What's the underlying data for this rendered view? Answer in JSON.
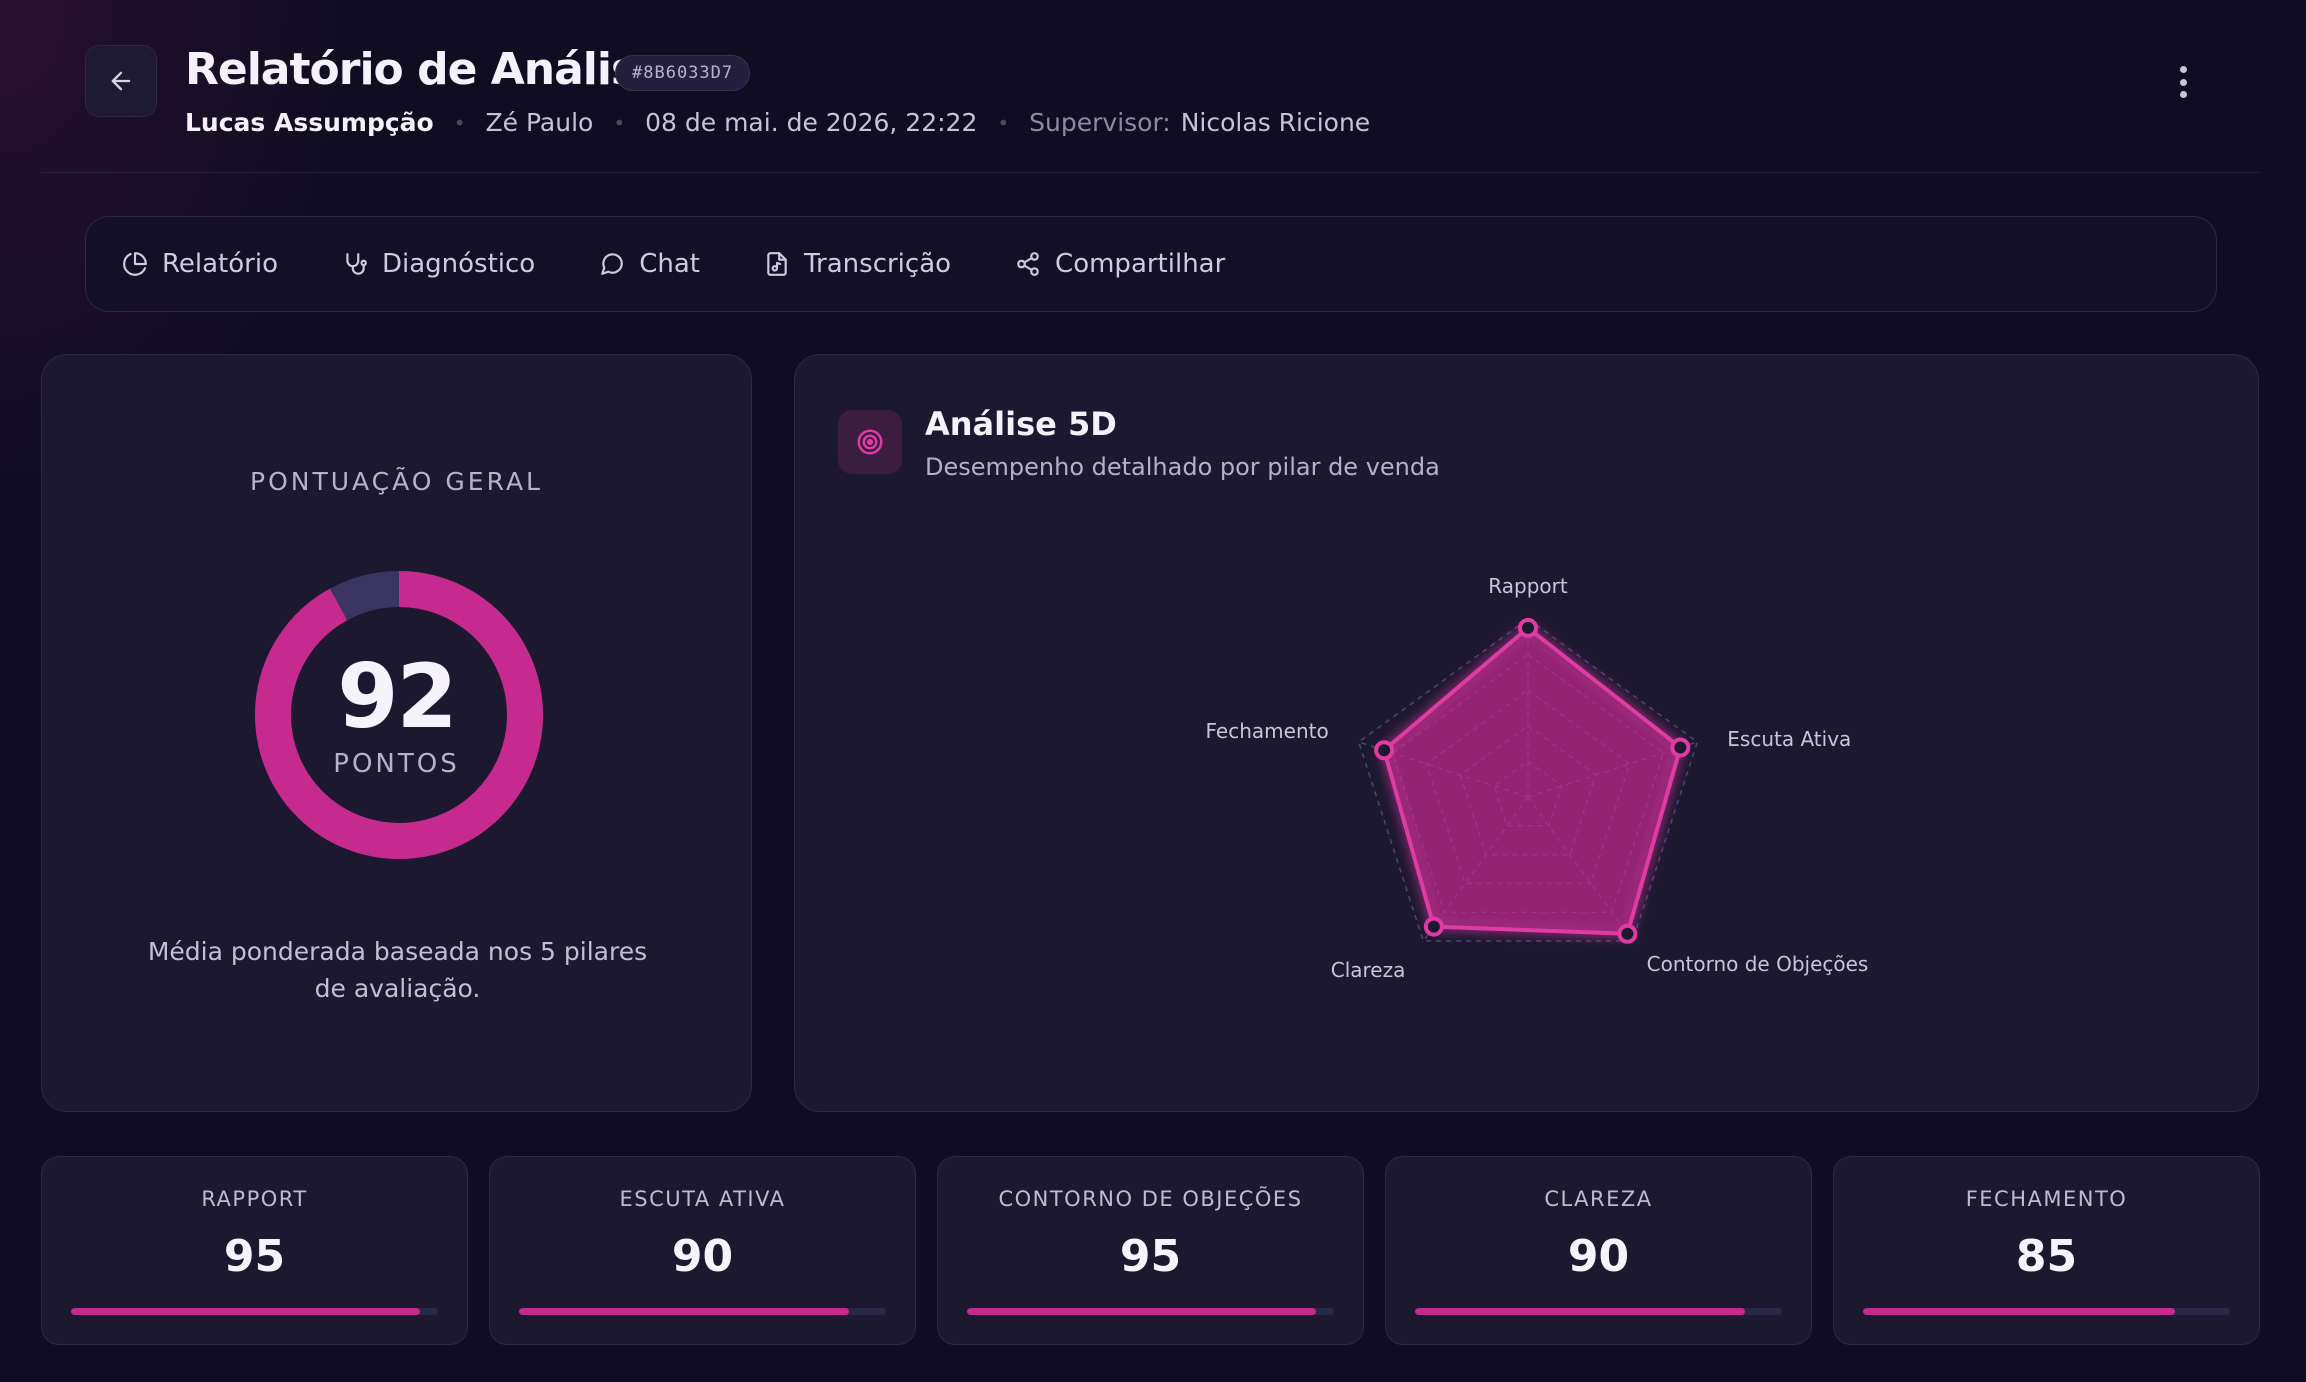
{
  "header": {
    "title": "Relatório de Análise",
    "id_badge": "#8B6033D7",
    "seller": "Lucas Assumpção",
    "client": "Zé Paulo",
    "datetime": "08 de mai. de 2026, 22:22",
    "supervisor_label": "Supervisor:",
    "supervisor": "Nicolas Ricione"
  },
  "tabs": [
    {
      "label": "Relatório",
      "icon": "pie-chart-icon"
    },
    {
      "label": "Diagnóstico",
      "icon": "stethoscope-icon"
    },
    {
      "label": "Chat",
      "icon": "chat-bubble-icon"
    },
    {
      "label": "Transcrição",
      "icon": "audio-file-icon"
    },
    {
      "label": "Compartilhar",
      "icon": "share-icon"
    }
  ],
  "score": {
    "label": "PONTUAÇÃO GERAL",
    "value": "92",
    "unit": "PONTOS",
    "max": 100,
    "description": "Média ponderada baseada nos 5 pilares de avaliação."
  },
  "radar": {
    "title": "Análise 5D",
    "subtitle": "Desempenho detalhado por pilar de venda",
    "icon": "target-icon"
  },
  "chart_data": {
    "type": "radar",
    "categories": [
      "Rapport",
      "Escuta Ativa",
      "Contorno de Objeções",
      "Clareza",
      "Fechamento"
    ],
    "values": [
      95,
      90,
      95,
      90,
      85
    ],
    "range": [
      0,
      100
    ],
    "grid": true
  },
  "metrics": [
    {
      "label": "RAPPORT",
      "value": "95",
      "percent": 95
    },
    {
      "label": "ESCUTA ATIVA",
      "value": "90",
      "percent": 90
    },
    {
      "label": "CONTORNO DE OBJEÇÕES",
      "value": "95",
      "percent": 95
    },
    {
      "label": "CLAREZA",
      "value": "90",
      "percent": 90
    },
    {
      "label": "FECHAMENTO",
      "value": "85",
      "percent": 85
    }
  ],
  "colors": {
    "accent": "#c62a8e",
    "accent_bright": "#e03aa3",
    "background": "#100d22",
    "card": "#1c1830",
    "track": "#3a3460"
  }
}
